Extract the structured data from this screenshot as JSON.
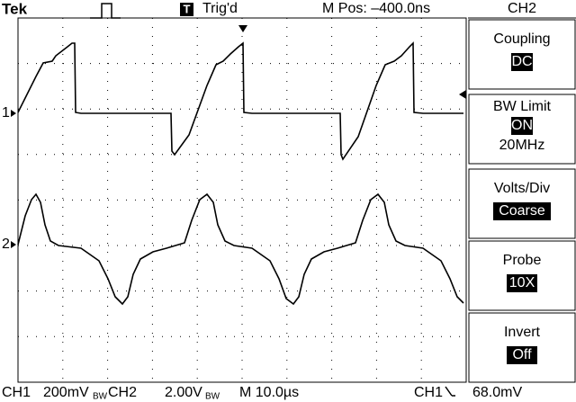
{
  "header": {
    "brand": "Tek",
    "trigger_icon": "T",
    "trigger_status": "Trig'd",
    "position": "M Pos: –400.0ns",
    "channel": "CH2"
  },
  "menu": [
    {
      "label": "Coupling",
      "value": "DC"
    },
    {
      "label": "BW Limit",
      "value": "ON",
      "extra": "20MHz"
    },
    {
      "label": "Volts/Div",
      "value": "Coarse"
    },
    {
      "label": "Probe",
      "value": "10X"
    },
    {
      "label": "Invert",
      "value": "Off"
    }
  ],
  "markers": {
    "ch1": "1",
    "ch2": "2"
  },
  "footer": {
    "ch1": "CH1",
    "ch1_scale": "200mV",
    "ch1_bw": "BW",
    "ch2": "CH2",
    "ch2_scale": "2.00V",
    "ch2_bw": "BW",
    "timebase": "M 10.0µs",
    "trigger_source": "CH1",
    "trigger_level": "68.0mV"
  }
}
